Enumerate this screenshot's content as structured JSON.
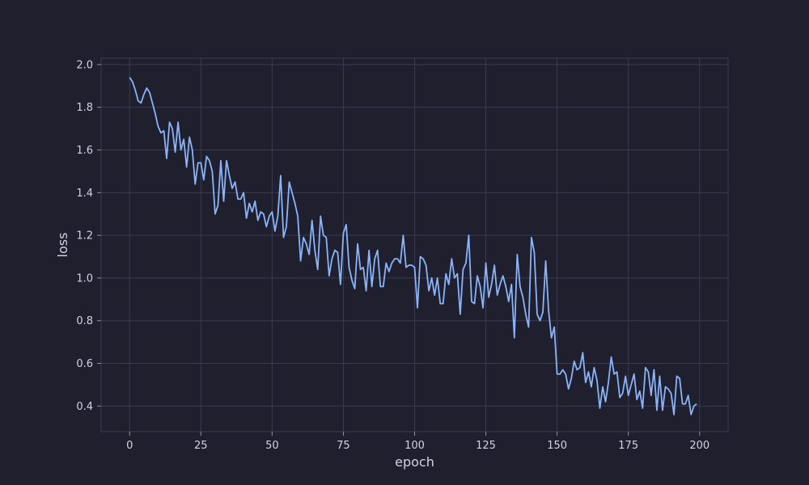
{
  "chart_data": {
    "type": "line",
    "title": "",
    "xlabel": "epoch",
    "ylabel": "loss",
    "xlim": [
      -10,
      210
    ],
    "ylim": [
      0.28,
      2.03
    ],
    "x_ticks": [
      0,
      25,
      50,
      75,
      100,
      125,
      150,
      175,
      200
    ],
    "y_ticks": [
      0.4,
      0.6,
      0.8,
      1.0,
      1.2,
      1.4,
      1.6,
      1.8,
      2.0
    ],
    "grid": true,
    "legend": "none",
    "colors": {
      "background": "#1f1f2e",
      "line": "#89b4fa",
      "grid": "#3a3b52",
      "text": "#d0d3e6"
    },
    "series": [
      {
        "values": [
          1.94,
          1.92,
          1.88,
          1.83,
          1.82,
          1.86,
          1.89,
          1.87,
          1.82,
          1.77,
          1.71,
          1.68,
          1.69,
          1.56,
          1.73,
          1.7,
          1.59,
          1.73,
          1.6,
          1.65,
          1.52,
          1.66,
          1.6,
          1.44,
          1.54,
          1.54,
          1.46,
          1.57,
          1.55,
          1.5,
          1.3,
          1.34,
          1.55,
          1.36,
          1.55,
          1.48,
          1.42,
          1.45,
          1.37,
          1.37,
          1.4,
          1.28,
          1.35,
          1.31,
          1.36,
          1.27,
          1.31,
          1.3,
          1.24,
          1.29,
          1.31,
          1.22,
          1.29,
          1.48,
          1.19,
          1.24,
          1.45,
          1.4,
          1.35,
          1.29,
          1.08,
          1.19,
          1.16,
          1.11,
          1.27,
          1.13,
          1.04,
          1.29,
          1.2,
          1.19,
          1.01,
          1.09,
          1.13,
          1.12,
          0.97,
          1.21,
          1.25,
          1.05,
          0.99,
          0.95,
          1.16,
          1.04,
          1.05,
          0.94,
          1.13,
          0.96,
          1.09,
          1.13,
          0.96,
          0.96,
          1.07,
          1.03,
          1.07,
          1.09,
          1.09,
          1.07,
          1.2,
          1.05,
          1.06,
          1.06,
          1.05,
          0.86,
          1.1,
          1.09,
          1.06,
          0.94,
          1.0,
          0.92,
          1.0,
          0.88,
          0.88,
          1.02,
          0.97,
          1.09,
          1.0,
          1.02,
          0.83,
          1.04,
          1.07,
          1.2,
          0.89,
          0.88,
          1.01,
          0.96,
          0.86,
          1.07,
          0.91,
          0.97,
          1.06,
          0.92,
          0.97,
          1.01,
          0.96,
          0.89,
          0.97,
          0.72,
          1.11,
          0.96,
          0.91,
          0.83,
          0.77,
          1.19,
          1.12,
          0.83,
          0.8,
          0.84,
          1.08,
          0.85,
          0.72,
          0.77,
          0.55,
          0.55,
          0.57,
          0.55,
          0.48,
          0.53,
          0.61,
          0.57,
          0.58,
          0.65,
          0.51,
          0.56,
          0.49,
          0.58,
          0.52,
          0.39,
          0.49,
          0.42,
          0.51,
          0.63,
          0.55,
          0.56,
          0.44,
          0.46,
          0.54,
          0.45,
          0.5,
          0.55,
          0.43,
          0.47,
          0.39,
          0.58,
          0.56,
          0.45,
          0.57,
          0.38,
          0.54,
          0.38,
          0.49,
          0.48,
          0.46,
          0.36,
          0.54,
          0.53,
          0.41,
          0.41,
          0.45,
          0.36,
          0.4,
          0.41
        ]
      }
    ]
  }
}
